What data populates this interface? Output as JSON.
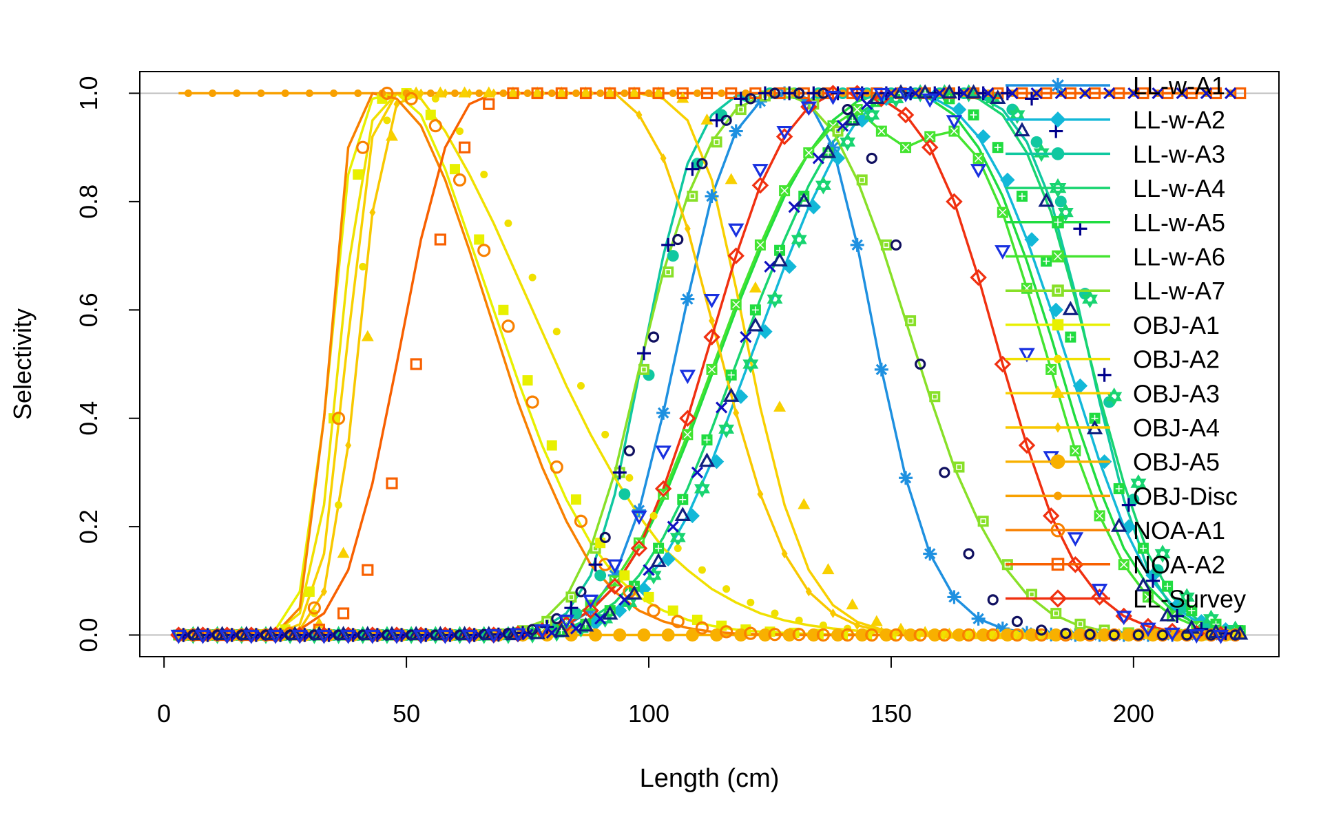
{
  "chart_data": {
    "type": "line",
    "title": "",
    "xlabel": "Length (cm)",
    "ylabel": "Selectivity",
    "xlim": [
      -5,
      230
    ],
    "ylim": [
      -0.04,
      1.04
    ],
    "x_ticks": [
      0,
      50,
      100,
      150,
      200
    ],
    "x_tick_labels": [
      "0",
      "50",
      "100",
      "150",
      "200"
    ],
    "y_ticks": [
      0.0,
      0.2,
      0.4,
      0.6,
      0.8,
      1.0
    ],
    "y_tick_labels": [
      "0.0",
      "0.2",
      "0.4",
      "0.6",
      "0.8",
      "1.0"
    ],
    "reference_lines_y": [
      0,
      1
    ],
    "grid": false,
    "legend_position": "right",
    "x": [
      3,
      8,
      13,
      18,
      23,
      28,
      33,
      38,
      43,
      48,
      53,
      58,
      63,
      68,
      73,
      78,
      83,
      88,
      93,
      98,
      103,
      108,
      113,
      118,
      123,
      128,
      133,
      138,
      143,
      148,
      153,
      158,
      163,
      168,
      173,
      178,
      183,
      188,
      193,
      198,
      203,
      208,
      213,
      218
    ],
    "series": [
      {
        "name": "LL-w-A1",
        "color": "#1E90E0",
        "marker": "asterisk",
        "values": [
          0,
          0,
          0,
          0,
          0,
          0,
          0,
          0,
          0,
          0,
          0,
          0,
          0,
          0.001,
          0.002,
          0.006,
          0.017,
          0.045,
          0.11,
          0.23,
          0.41,
          0.62,
          0.81,
          0.93,
          0.985,
          1,
          0.985,
          0.9,
          0.72,
          0.49,
          0.29,
          0.15,
          0.07,
          0.03,
          0.012,
          0.004,
          0.001,
          0,
          0,
          0,
          0,
          0,
          0,
          0
        ]
      },
      {
        "name": "LL-w-A2",
        "color": "#12B8D8",
        "marker": "diamond",
        "values": [
          0,
          0,
          0,
          0,
          0,
          0,
          0,
          0,
          0,
          0,
          0,
          0,
          0,
          0,
          0.001,
          0.004,
          0.01,
          0.022,
          0.045,
          0.085,
          0.14,
          0.22,
          0.32,
          0.44,
          0.56,
          0.68,
          0.79,
          0.88,
          0.95,
          0.99,
          1,
          0.995,
          0.97,
          0.92,
          0.84,
          0.73,
          0.6,
          0.46,
          0.32,
          0.2,
          0.11,
          0.055,
          0.025,
          0.01
        ]
      },
      {
        "name": "LL-w-A3",
        "color": "#10C8A0",
        "marker": "filled-circle",
        "values": [
          0,
          0,
          0,
          0,
          0,
          0,
          0,
          0,
          0,
          0,
          0,
          0,
          0,
          0.001,
          0.004,
          0.012,
          0.04,
          0.11,
          0.26,
          0.48,
          0.7,
          0.87,
          0.96,
          0.995,
          1,
          1,
          1,
          1,
          1,
          1,
          1,
          1,
          1,
          0.995,
          0.97,
          0.91,
          0.8,
          0.63,
          0.43,
          0.25,
          0.12,
          0.05,
          0.018,
          0.006
        ]
      },
      {
        "name": "LL-w-A4",
        "color": "#18D470",
        "marker": "star",
        "values": [
          0,
          0,
          0,
          0,
          0,
          0,
          0,
          0,
          0,
          0,
          0,
          0,
          0,
          0,
          0.001,
          0.004,
          0.012,
          0.03,
          0.06,
          0.11,
          0.18,
          0.27,
          0.38,
          0.5,
          0.62,
          0.73,
          0.83,
          0.91,
          0.96,
          0.99,
          1,
          1,
          1,
          0.99,
          0.96,
          0.89,
          0.78,
          0.62,
          0.44,
          0.28,
          0.15,
          0.07,
          0.03,
          0.01
        ]
      },
      {
        "name": "LL-w-A5",
        "color": "#20DC40",
        "marker": "boxed-plus",
        "values": [
          0,
          0,
          0,
          0,
          0,
          0,
          0,
          0,
          0,
          0,
          0,
          0,
          0,
          0.001,
          0.003,
          0.008,
          0.02,
          0.045,
          0.09,
          0.16,
          0.25,
          0.36,
          0.48,
          0.6,
          0.71,
          0.81,
          0.89,
          0.95,
          0.985,
          1,
          1,
          0.99,
          0.96,
          0.9,
          0.81,
          0.69,
          0.55,
          0.4,
          0.27,
          0.16,
          0.09,
          0.045,
          0.02,
          0.008
        ]
      },
      {
        "name": "LL-w-A6",
        "color": "#44E430",
        "marker": "boxed-x",
        "values": [
          0,
          0,
          0,
          0,
          0,
          0,
          0,
          0,
          0,
          0,
          0,
          0,
          0,
          0.001,
          0.004,
          0.01,
          0.025,
          0.055,
          0.1,
          0.17,
          0.26,
          0.37,
          0.49,
          0.61,
          0.72,
          0.82,
          0.89,
          0.94,
          0.97,
          0.93,
          0.9,
          0.92,
          0.93,
          0.88,
          0.78,
          0.64,
          0.49,
          0.34,
          0.22,
          0.13,
          0.07,
          0.035,
          0.016,
          0.006
        ]
      },
      {
        "name": "LL-w-A7",
        "color": "#88E028",
        "marker": "boxed-square",
        "values": [
          0,
          0,
          0,
          0,
          0,
          0,
          0,
          0,
          0,
          0,
          0,
          0,
          0,
          0.002,
          0.008,
          0.025,
          0.07,
          0.16,
          0.3,
          0.49,
          0.67,
          0.81,
          0.91,
          0.97,
          0.995,
          1,
          0.98,
          0.93,
          0.84,
          0.72,
          0.58,
          0.44,
          0.31,
          0.21,
          0.13,
          0.075,
          0.04,
          0.02,
          0.009,
          0.004,
          0.002,
          0.001,
          0,
          0
        ]
      },
      {
        "name": "OBJ-A1",
        "color": "#E8F000",
        "marker": "filled-square",
        "values": [
          0,
          0,
          0,
          0.001,
          0.01,
          0.08,
          0.4,
          0.85,
          0.99,
          1,
          0.96,
          0.86,
          0.73,
          0.6,
          0.47,
          0.35,
          0.25,
          0.17,
          0.11,
          0.07,
          0.045,
          0.028,
          0.017,
          0.01,
          0.006,
          0.004,
          0.002,
          0.001,
          0.001,
          0,
          0,
          0,
          0,
          0,
          0,
          0,
          0,
          0,
          0,
          0,
          0,
          0,
          0,
          0
        ]
      },
      {
        "name": "OBJ-A2",
        "color": "#F0E000",
        "marker": "small-dot",
        "values": [
          0,
          0,
          0,
          0,
          0.005,
          0.04,
          0.24,
          0.68,
          0.95,
          1,
          0.99,
          0.93,
          0.85,
          0.76,
          0.66,
          0.56,
          0.46,
          0.37,
          0.29,
          0.22,
          0.16,
          0.12,
          0.085,
          0.06,
          0.04,
          0.027,
          0.018,
          0.012,
          0.008,
          0.005,
          0.003,
          0.002,
          0.001,
          0.001,
          0,
          0,
          0,
          0,
          0,
          0,
          0,
          0,
          0,
          0
        ]
      },
      {
        "name": "OBJ-A3",
        "color": "#F8D000",
        "marker": "triangle",
        "values": [
          0,
          0,
          0,
          0,
          0.001,
          0.02,
          0.15,
          0.55,
          0.92,
          1,
          1,
          1,
          1,
          1,
          1,
          1,
          1,
          1,
          1,
          1,
          0.99,
          0.95,
          0.84,
          0.64,
          0.42,
          0.24,
          0.12,
          0.055,
          0.024,
          0.01,
          0.004,
          0.001,
          0,
          0,
          0,
          0,
          0,
          0,
          0,
          0,
          0,
          0,
          0,
          0
        ]
      },
      {
        "name": "OBJ-A4",
        "color": "#F8C800",
        "marker": "small-diamond",
        "values": [
          0,
          0,
          0,
          0,
          0,
          0.01,
          0.08,
          0.35,
          0.78,
          0.98,
          1,
          1,
          1,
          1,
          1,
          1,
          1,
          1,
          1,
          0.96,
          0.88,
          0.75,
          0.58,
          0.41,
          0.26,
          0.15,
          0.08,
          0.04,
          0.018,
          0.007,
          0.003,
          0.001,
          0,
          0,
          0,
          0,
          0,
          0,
          0,
          0,
          0,
          0,
          0,
          0
        ]
      },
      {
        "name": "OBJ-A5",
        "color": "#F8B000",
        "marker": "large-dot",
        "values": [
          0,
          0,
          0,
          0,
          0,
          0,
          0,
          0,
          0,
          0,
          0,
          0,
          0,
          0,
          0,
          0,
          0,
          0,
          0,
          0,
          0,
          0,
          0,
          0,
          0,
          0,
          0,
          0,
          0,
          0,
          0,
          0,
          0,
          0,
          0,
          0,
          0,
          0,
          0,
          0,
          0,
          0,
          0,
          0
        ]
      },
      {
        "name": "OBJ-Disc",
        "color": "#F8A000",
        "marker": "small-dot",
        "values": [
          1,
          1,
          1,
          1,
          1,
          1,
          1,
          1,
          1,
          1,
          1,
          1,
          1,
          1,
          1,
          1,
          1,
          1,
          1,
          1,
          1,
          1,
          1,
          1,
          1,
          1,
          1,
          1,
          1,
          1,
          1,
          1,
          1,
          1,
          1,
          1,
          1,
          1,
          1,
          1,
          1,
          1,
          1,
          1
        ]
      },
      {
        "name": "NOA-A1",
        "color": "#F88000",
        "marker": "open-circle",
        "values": [
          0,
          0,
          0,
          0,
          0.003,
          0.05,
          0.4,
          0.9,
          1,
          0.99,
          0.94,
          0.84,
          0.71,
          0.57,
          0.43,
          0.31,
          0.21,
          0.13,
          0.08,
          0.045,
          0.025,
          0.013,
          0.006,
          0.003,
          0.001,
          0.001,
          0,
          0,
          0,
          0,
          0,
          0,
          0,
          0,
          0,
          0,
          0,
          0,
          0,
          0,
          0,
          0,
          0,
          0
        ]
      },
      {
        "name": "NOA-A2",
        "color": "#F86000",
        "marker": "open-square",
        "values": [
          0,
          0,
          0,
          0,
          0.001,
          0.01,
          0.04,
          0.12,
          0.28,
          0.5,
          0.73,
          0.9,
          0.98,
          1,
          1,
          1,
          1,
          1,
          1,
          1,
          1,
          1,
          1,
          1,
          1,
          1,
          1,
          1,
          1,
          1,
          1,
          1,
          1,
          1,
          1,
          1,
          1,
          1,
          1,
          1,
          1,
          1,
          1,
          1
        ]
      },
      {
        "name": "LL-Survey",
        "color": "#F03010",
        "marker": "open-diamond",
        "values": [
          0,
          0,
          0,
          0,
          0,
          0,
          0,
          0,
          0,
          0,
          0,
          0,
          0,
          0,
          0.002,
          0.008,
          0.02,
          0.045,
          0.09,
          0.16,
          0.27,
          0.4,
          0.55,
          0.7,
          0.83,
          0.92,
          0.975,
          1,
          1,
          0.99,
          0.96,
          0.9,
          0.8,
          0.66,
          0.5,
          0.35,
          0.22,
          0.13,
          0.07,
          0.035,
          0.016,
          0.007,
          0.003,
          0.001
        ]
      }
    ],
    "extra_unlabeled_series": [
      {
        "color": "#00008B",
        "marker": "plus",
        "values": [
          0,
          0,
          0,
          0,
          0,
          0,
          0,
          0,
          0,
          0,
          0,
          0,
          0,
          0.001,
          0.004,
          0.015,
          0.05,
          0.13,
          0.3,
          0.52,
          0.72,
          0.86,
          0.95,
          0.99,
          1,
          1,
          1,
          1,
          1,
          1,
          1,
          1,
          1,
          1,
          1,
          0.99,
          0.93,
          0.75,
          0.48,
          0.24,
          0.1,
          0.035,
          0.011,
          0.003
        ]
      },
      {
        "color": "#1010C0",
        "marker": "x",
        "values": [
          0,
          0,
          0,
          0,
          0,
          0,
          0,
          0,
          0,
          0,
          0,
          0,
          0,
          0,
          0.001,
          0.004,
          0.012,
          0.03,
          0.065,
          0.12,
          0.2,
          0.3,
          0.42,
          0.55,
          0.68,
          0.79,
          0.88,
          0.94,
          0.98,
          1,
          1,
          1,
          1,
          1,
          1,
          1,
          1,
          1,
          1,
          1,
          1,
          1,
          1,
          1
        ]
      },
      {
        "color": "#101060",
        "marker": "open-circle-small",
        "values": [
          0,
          0,
          0,
          0,
          0,
          0,
          0,
          0,
          0,
          0,
          0,
          0,
          0.001,
          0.003,
          0.01,
          0.03,
          0.08,
          0.18,
          0.34,
          0.55,
          0.73,
          0.87,
          0.95,
          0.99,
          1,
          1,
          1,
          0.97,
          0.88,
          0.72,
          0.5,
          0.3,
          0.15,
          0.065,
          0.025,
          0.009,
          0.003,
          0.001,
          0,
          0,
          0,
          0,
          0,
          0
        ]
      },
      {
        "color": "#102080",
        "marker": "open-triangle",
        "values": [
          0,
          0,
          0,
          0,
          0,
          0,
          0,
          0,
          0,
          0,
          0,
          0,
          0,
          0,
          0.002,
          0.006,
          0.016,
          0.038,
          0.075,
          0.135,
          0.22,
          0.32,
          0.44,
          0.57,
          0.69,
          0.8,
          0.89,
          0.95,
          0.99,
          1,
          1,
          1,
          1,
          0.99,
          0.93,
          0.8,
          0.6,
          0.38,
          0.2,
          0.09,
          0.035,
          0.012,
          0.004,
          0.001
        ]
      },
      {
        "color": "#1830E0",
        "marker": "open-inv-triangle",
        "values": [
          0,
          0,
          0,
          0,
          0,
          0,
          0,
          0,
          0,
          0,
          0,
          0,
          0,
          0.001,
          0.003,
          0.01,
          0.028,
          0.065,
          0.13,
          0.22,
          0.34,
          0.48,
          0.62,
          0.75,
          0.86,
          0.93,
          0.975,
          0.995,
          1,
          1,
          1,
          0.99,
          0.95,
          0.86,
          0.71,
          0.52,
          0.33,
          0.18,
          0.085,
          0.035,
          0.013,
          0.004,
          0.001,
          0
        ]
      }
    ]
  }
}
